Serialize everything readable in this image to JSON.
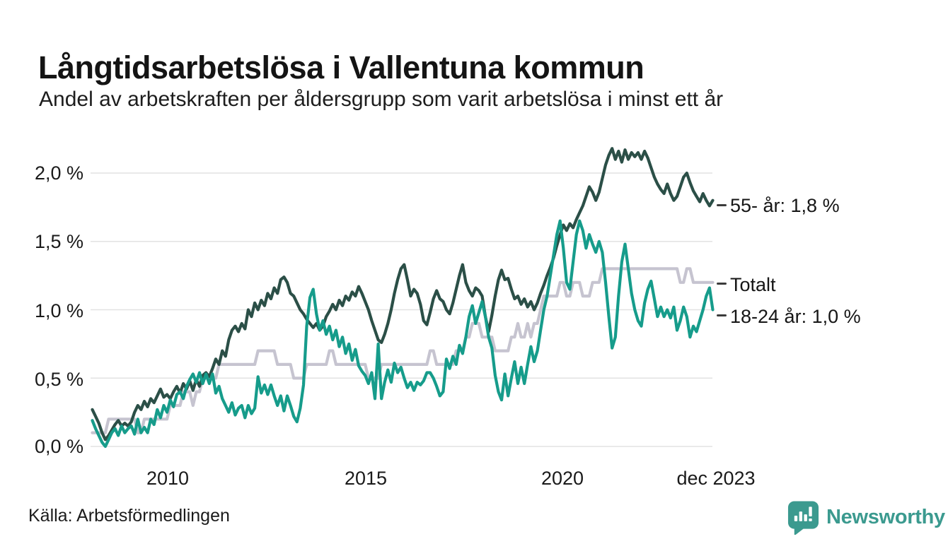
{
  "header": {
    "title": "Långtidsarbetslösa i Vallentuna kommun",
    "subtitle": "Andel av arbetskraften per åldersgrupp som varit arbetslösa i minst ett år"
  },
  "footer": {
    "source": "Källa: Arbetsförmedlingen",
    "brand": "Newsworthy"
  },
  "colors": {
    "background": "#ffffff",
    "gridline": "#e2e2e2",
    "axis_text": "#1a1a1a",
    "label_dash": "#3b3b3b",
    "brand_teal": "#3b9a8f",
    "series_55": "#2b4f47",
    "series_total": "#c6c4d0",
    "series_18_24": "#169c8b"
  },
  "chart_data": {
    "type": "line",
    "title": "Långtidsarbetslösa i Vallentuna kommun",
    "subtitle": "Andel av arbetskraften per åldersgrupp som varit arbetslösa i minst ett år",
    "source": "Källa: Arbetsförmedlingen",
    "legend_position": "end-of-line-labels-right",
    "x_axis": {
      "ticks": [
        "2010",
        "2015",
        "2020",
        "dec 2023"
      ],
      "tick_years": [
        2010,
        2015,
        2020,
        2023.92
      ],
      "range_years": [
        2008.0,
        2023.92
      ],
      "resolution": "monthly",
      "start": "2008-01",
      "end": "2023-12"
    },
    "y_axis": {
      "ticks": [
        "2,0 %",
        "1,5 %",
        "1,0 %",
        "0,5 %",
        "0,0 %"
      ],
      "tick_values": [
        2.0,
        1.5,
        1.0,
        0.5,
        0.0
      ],
      "range": [
        0,
        2.25
      ],
      "unit": "percent",
      "gridlines": true
    },
    "points_per_series": 192,
    "series": [
      {
        "name": "Totalt",
        "label": "Totalt",
        "color": "#c6c4d0",
        "end_value": 1.2,
        "values": [
          0.1,
          0.1,
          0.1,
          0.1,
          0.1,
          0.2,
          0.2,
          0.2,
          0.2,
          0.2,
          0.2,
          0.2,
          0.2,
          0.2,
          0.1,
          0.1,
          0.2,
          0.2,
          0.2,
          0.2,
          0.2,
          0.2,
          0.2,
          0.2,
          0.3,
          0.3,
          0.3,
          0.3,
          0.4,
          0.4,
          0.4,
          0.3,
          0.4,
          0.4,
          0.5,
          0.5,
          0.5,
          0.5,
          0.5,
          0.6,
          0.6,
          0.6,
          0.6,
          0.6,
          0.6,
          0.6,
          0.6,
          0.6,
          0.6,
          0.6,
          0.6,
          0.7,
          0.7,
          0.7,
          0.7,
          0.7,
          0.7,
          0.6,
          0.6,
          0.6,
          0.6,
          0.6,
          0.5,
          0.5,
          0.5,
          0.5,
          0.6,
          0.6,
          0.6,
          0.6,
          0.6,
          0.6,
          0.6,
          0.7,
          0.7,
          0.6,
          0.6,
          0.6,
          0.6,
          0.6,
          0.6,
          0.6,
          0.6,
          0.6,
          0.6,
          0.5,
          0.5,
          0.5,
          0.5,
          0.6,
          0.6,
          0.6,
          0.6,
          0.6,
          0.6,
          0.6,
          0.6,
          0.6,
          0.6,
          0.6,
          0.6,
          0.6,
          0.6,
          0.6,
          0.7,
          0.7,
          0.6,
          0.6,
          0.6,
          0.6,
          0.6,
          0.6,
          0.7,
          0.7,
          0.7,
          0.8,
          0.8,
          0.9,
          0.9,
          0.9,
          0.8,
          0.8,
          0.8,
          0.8,
          0.7,
          0.7,
          0.7,
          0.7,
          0.7,
          0.8,
          0.8,
          0.9,
          0.8,
          0.8,
          0.9,
          0.8,
          0.9,
          0.9,
          1.0,
          1.1,
          1.1,
          1.1,
          1.1,
          1.1,
          1.2,
          1.2,
          1.1,
          1.1,
          1.2,
          1.2,
          1.2,
          1.1,
          1.1,
          1.1,
          1.2,
          1.2,
          1.2,
          1.3,
          1.3,
          1.3,
          1.3,
          1.3,
          1.3,
          1.3,
          1.3,
          1.3,
          1.3,
          1.3,
          1.3,
          1.3,
          1.3,
          1.3,
          1.3,
          1.3,
          1.3,
          1.3,
          1.3,
          1.3,
          1.3,
          1.3,
          1.3,
          1.2,
          1.2,
          1.3,
          1.3,
          1.2,
          1.2,
          1.2,
          1.2,
          1.2,
          1.2,
          1.2
        ]
      },
      {
        "name": "55- år",
        "label": "55- år: 1,8 %",
        "color": "#2b4f47",
        "end_value": 1.8,
        "values": [
          0.27,
          0.22,
          0.17,
          0.1,
          0.05,
          0.08,
          0.12,
          0.16,
          0.19,
          0.15,
          0.17,
          0.15,
          0.18,
          0.25,
          0.3,
          0.27,
          0.33,
          0.29,
          0.35,
          0.32,
          0.37,
          0.42,
          0.36,
          0.38,
          0.35,
          0.4,
          0.44,
          0.39,
          0.46,
          0.42,
          0.48,
          0.41,
          0.49,
          0.44,
          0.52,
          0.54,
          0.51,
          0.57,
          0.64,
          0.6,
          0.7,
          0.66,
          0.78,
          0.85,
          0.88,
          0.84,
          0.9,
          0.86,
          1.0,
          0.95,
          1.05,
          1.0,
          1.07,
          1.03,
          1.12,
          1.08,
          1.16,
          1.12,
          1.22,
          1.24,
          1.2,
          1.12,
          1.1,
          1.05,
          1.0,
          0.97,
          0.93,
          0.9,
          0.87,
          0.9,
          0.85,
          0.88,
          0.95,
          0.99,
          1.04,
          1.0,
          1.07,
          1.03,
          1.1,
          1.07,
          1.13,
          1.1,
          1.17,
          1.12,
          1.06,
          1.0,
          0.92,
          0.85,
          0.78,
          0.76,
          0.82,
          0.9,
          1.0,
          1.12,
          1.22,
          1.3,
          1.33,
          1.22,
          1.1,
          1.15,
          1.12,
          1.04,
          0.92,
          0.89,
          0.98,
          1.08,
          1.14,
          1.08,
          1.06,
          1.0,
          0.97,
          1.05,
          1.15,
          1.25,
          1.33,
          1.2,
          1.14,
          1.1,
          1.16,
          1.14,
          1.1,
          0.95,
          0.84,
          0.96,
          1.1,
          1.22,
          1.29,
          1.22,
          1.23,
          1.15,
          1.08,
          1.1,
          1.04,
          1.08,
          1.02,
          1.06,
          1.0,
          1.05,
          1.12,
          1.18,
          1.25,
          1.31,
          1.38,
          1.47,
          1.55,
          1.62,
          1.58,
          1.63,
          1.6,
          1.66,
          1.71,
          1.76,
          1.83,
          1.9,
          1.86,
          1.8,
          1.86,
          1.96,
          2.06,
          2.13,
          2.18,
          2.1,
          2.16,
          2.08,
          2.17,
          2.1,
          2.15,
          2.12,
          2.15,
          2.1,
          2.16,
          2.11,
          2.04,
          1.97,
          1.92,
          1.88,
          1.85,
          1.92,
          1.85,
          1.8,
          1.83,
          1.9,
          1.97,
          2.0,
          1.93,
          1.87,
          1.83,
          1.79,
          1.85,
          1.8,
          1.76,
          1.8
        ]
      },
      {
        "name": "18-24 år",
        "label": "18-24 år: 1,0 %",
        "color": "#169c8b",
        "end_value": 1.0,
        "values": [
          0.19,
          0.13,
          0.08,
          0.03,
          0.0,
          0.05,
          0.1,
          0.13,
          0.08,
          0.15,
          0.1,
          0.13,
          0.15,
          0.09,
          0.2,
          0.1,
          0.14,
          0.1,
          0.2,
          0.16,
          0.27,
          0.21,
          0.3,
          0.25,
          0.34,
          0.29,
          0.38,
          0.4,
          0.35,
          0.44,
          0.49,
          0.53,
          0.47,
          0.54,
          0.46,
          0.53,
          0.46,
          0.53,
          0.39,
          0.44,
          0.35,
          0.3,
          0.25,
          0.32,
          0.23,
          0.28,
          0.3,
          0.21,
          0.3,
          0.24,
          0.28,
          0.51,
          0.39,
          0.45,
          0.38,
          0.45,
          0.37,
          0.3,
          0.37,
          0.26,
          0.37,
          0.3,
          0.22,
          0.18,
          0.28,
          0.45,
          0.88,
          1.09,
          1.15,
          0.97,
          0.85,
          0.92,
          0.82,
          0.88,
          0.78,
          0.85,
          0.73,
          0.8,
          0.68,
          0.75,
          0.63,
          0.71,
          0.59,
          0.55,
          0.52,
          0.46,
          0.54,
          0.35,
          0.75,
          0.35,
          0.47,
          0.56,
          0.47,
          0.61,
          0.54,
          0.58,
          0.5,
          0.43,
          0.47,
          0.41,
          0.47,
          0.45,
          0.48,
          0.54,
          0.54,
          0.5,
          0.44,
          0.37,
          0.4,
          0.64,
          0.57,
          0.66,
          0.6,
          0.74,
          0.68,
          0.8,
          0.95,
          1.03,
          0.9,
          0.98,
          1.06,
          0.95,
          0.8,
          0.72,
          0.52,
          0.4,
          0.34,
          0.53,
          0.37,
          0.5,
          0.62,
          0.46,
          0.58,
          0.46,
          0.6,
          0.73,
          0.62,
          0.7,
          0.85,
          1.0,
          1.1,
          1.25,
          1.4,
          1.55,
          1.65,
          1.45,
          1.2,
          1.15,
          1.35,
          1.55,
          1.65,
          1.58,
          1.45,
          1.55,
          1.48,
          1.42,
          1.5,
          1.42,
          1.2,
          0.95,
          0.72,
          0.8,
          1.1,
          1.35,
          1.48,
          1.3,
          1.12,
          1.0,
          0.92,
          0.88,
          1.05,
          1.15,
          1.21,
          1.08,
          0.95,
          1.02,
          0.95,
          1.0,
          0.94,
          1.02,
          0.85,
          0.92,
          1.02,
          0.95,
          0.8,
          0.88,
          0.84,
          0.92,
          1.0,
          1.1,
          1.16,
          1.0
        ]
      }
    ]
  }
}
